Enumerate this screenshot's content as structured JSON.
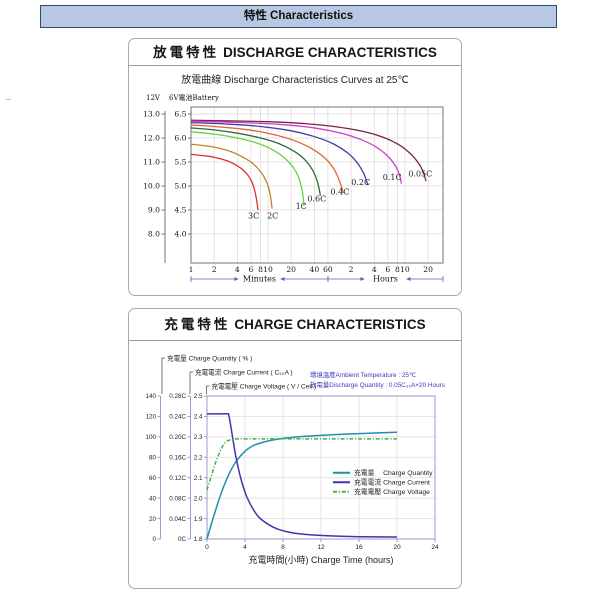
{
  "banner": {
    "title": "特性 Characteristics"
  },
  "chart_data": [
    {
      "id": "discharge",
      "type": "line",
      "title_zh": "放電特性",
      "title_en": "DISCHARGE CHARACTERISTICS",
      "subtitle": "放電曲線 Discharge Characteristics Curves at 25℃",
      "x_axis": {
        "scale": "log",
        "minute_ticks": [
          1,
          2,
          4,
          6,
          8,
          10,
          20,
          40,
          60
        ],
        "hour_ticks": [
          2,
          4,
          6,
          8,
          10,
          20
        ],
        "group_labels": [
          "Minutes",
          "Hours"
        ]
      },
      "y_axis_12v": {
        "header": "12V",
        "ticks": [
          "13.0",
          "12.0",
          "11.0",
          "10.0",
          "9.0",
          "8.0"
        ]
      },
      "y_axis_6v": {
        "header": "6V電池Battery",
        "ticks": [
          "6.5",
          "6.0",
          "5.5",
          "5.0",
          "4.5",
          "4.0"
        ],
        "range_volts": [
          4.0,
          6.5
        ]
      },
      "series": [
        {
          "name": "0.05C",
          "color": "#7d2248",
          "label_at": [
            950,
            5.2
          ],
          "points": [
            [
              1,
              6.37
            ],
            [
              10,
              6.34
            ],
            [
              30,
              6.3
            ],
            [
              80,
              6.23
            ],
            [
              180,
              6.13
            ],
            [
              320,
              6.01
            ],
            [
              500,
              5.86
            ],
            [
              700,
              5.68
            ],
            [
              880,
              5.5
            ],
            [
              1020,
              5.32
            ],
            [
              1130,
              5.1
            ]
          ]
        },
        {
          "name": "0.1C",
          "color": "#cc3fcc",
          "label_at": [
            410,
            5.13
          ],
          "points": [
            [
              1,
              6.35
            ],
            [
              5,
              6.32
            ],
            [
              15,
              6.28
            ],
            [
              40,
              6.21
            ],
            [
              90,
              6.1
            ],
            [
              160,
              5.97
            ],
            [
              250,
              5.82
            ],
            [
              350,
              5.64
            ],
            [
              440,
              5.45
            ],
            [
              505,
              5.25
            ],
            [
              540,
              5.05
            ]
          ]
        },
        {
          "name": "0.2C",
          "color": "#3d3f9e",
          "label_at": [
            160,
            5.02
          ],
          "points": [
            [
              1,
              6.32
            ],
            [
              3,
              6.29
            ],
            [
              8,
              6.24
            ],
            [
              20,
              6.15
            ],
            [
              40,
              6.03
            ],
            [
              70,
              5.88
            ],
            [
              110,
              5.68
            ],
            [
              145,
              5.48
            ],
            [
              175,
              5.26
            ],
            [
              198,
              5.02
            ]
          ]
        },
        {
          "name": "0.4C",
          "color": "#e2622f",
          "label_at": [
            86,
            4.82
          ],
          "points": [
            [
              1,
              6.27
            ],
            [
              2,
              6.24
            ],
            [
              5,
              6.18
            ],
            [
              10,
              6.1
            ],
            [
              20,
              5.97
            ],
            [
              35,
              5.8
            ],
            [
              55,
              5.58
            ],
            [
              72,
              5.35
            ],
            [
              85,
              5.1
            ],
            [
              95,
              4.85
            ]
          ]
        },
        {
          "name": "0.6C",
          "color": "#2e6b38",
          "label_at": [
            43,
            4.68
          ],
          "points": [
            [
              1,
              6.21
            ],
            [
              2,
              6.17
            ],
            [
              4,
              6.1
            ],
            [
              8,
              6.0
            ],
            [
              14,
              5.88
            ],
            [
              22,
              5.72
            ],
            [
              30,
              5.55
            ],
            [
              38,
              5.33
            ],
            [
              44,
              5.08
            ],
            [
              48,
              4.8
            ]
          ]
        },
        {
          "name": "1C",
          "color": "#5fd444",
          "label_at": [
            27,
            4.52
          ],
          "points": [
            [
              1,
              6.13
            ],
            [
              2,
              6.08
            ],
            [
              4,
              6.0
            ],
            [
              7,
              5.9
            ],
            [
              11,
              5.77
            ],
            [
              16,
              5.6
            ],
            [
              21,
              5.4
            ],
            [
              25,
              5.18
            ],
            [
              27.8,
              4.9
            ],
            [
              29.5,
              4.58
            ]
          ]
        },
        {
          "name": "2C",
          "color": "#bb8426",
          "label_at": [
            11.5,
            4.32
          ],
          "points": [
            [
              1,
              5.87
            ],
            [
              1.5,
              5.84
            ],
            [
              2,
              5.81
            ],
            [
              3,
              5.74
            ],
            [
              4,
              5.66
            ],
            [
              6,
              5.5
            ],
            [
              8,
              5.3
            ],
            [
              9.5,
              5.1
            ],
            [
              10.6,
              4.85
            ],
            [
              11.3,
              4.53
            ]
          ]
        },
        {
          "name": "3C",
          "color": "#d9342b",
          "label_at": [
            6.5,
            4.32
          ],
          "points": [
            [
              1,
              5.66
            ],
            [
              1.5,
              5.63
            ],
            [
              2,
              5.6
            ],
            [
              3,
              5.52
            ],
            [
              4,
              5.42
            ],
            [
              5,
              5.3
            ],
            [
              6,
              5.13
            ],
            [
              6.6,
              4.95
            ],
            [
              7.1,
              4.72
            ],
            [
              7.4,
              4.5
            ]
          ]
        }
      ]
    },
    {
      "id": "charge",
      "type": "line",
      "title_zh": "充電特性",
      "title_en": "CHARGE CHARACTERISTICS",
      "xlabel": "充電時間(小時)  Charge Time (hours)",
      "x_ticks": [
        0,
        4,
        8,
        12,
        16,
        20,
        24
      ],
      "x_range_hours": [
        0,
        24
      ],
      "annotations": [
        "環境溫度Ambient Temperature : 25℃",
        "放電量Discharge Quantity : 0.05C₂₀A×20 Hours"
      ],
      "axes": [
        {
          "key": "quantity",
          "label_zh": "充電量",
          "label_en": "Charge Quantity ( % )",
          "ticks": [
            "140",
            "120",
            "100",
            "80",
            "60",
            "40",
            "20",
            "0"
          ]
        },
        {
          "key": "current",
          "label_zh": "充電電流",
          "label_en": "Charge Current ( C₂₀A )",
          "ticks": [
            "0.28C",
            "0.24C",
            "0.20C",
            "0.16C",
            "0.12C",
            "0.08C",
            "0.04C",
            "0C"
          ]
        },
        {
          "key": "voltage",
          "label_zh": "充電電壓",
          "label_en": "Charge Voltage ( V / Cell )",
          "ticks": [
            "2.5",
            "2.4",
            "2.3",
            "2.2",
            "2.1",
            "2.0",
            "1.9",
            "1.8"
          ]
        }
      ],
      "legend": [
        {
          "zh": "充電量",
          "en": "Charge Quantity",
          "color": "#1f8fae",
          "dash": "solid"
        },
        {
          "zh": "充電電流",
          "en": "Charge Current",
          "color": "#4632a8",
          "dash": "solid"
        },
        {
          "zh": "充電電壓",
          "en": "Charge Voltage",
          "color": "#3cb34a",
          "dash": "dashdot"
        }
      ],
      "series": [
        {
          "name": "Charge Quantity",
          "axis": "quantity",
          "color": "#1f8fae",
          "dash": "solid",
          "points": [
            [
              0,
              0
            ],
            [
              0.5,
              16
            ],
            [
              1,
              31
            ],
            [
              1.5,
              45
            ],
            [
              2,
              57
            ],
            [
              2.5,
              67
            ],
            [
              3,
              75
            ],
            [
              3.5,
              81
            ],
            [
              4,
              86
            ],
            [
              4.5,
              89.5
            ],
            [
              5,
              92
            ],
            [
              6,
              95
            ],
            [
              7,
              97
            ],
            [
              8,
              98.5
            ],
            [
              9,
              99.5
            ],
            [
              10,
              100.3
            ],
            [
              12,
              101.5
            ],
            [
              14,
              102.4
            ],
            [
              16,
              103.2
            ],
            [
              18,
              103.9
            ],
            [
              20,
              104.5
            ]
          ]
        },
        {
          "name": "Charge Current",
          "axis": "current",
          "color": "#4632a8",
          "dash": "solid",
          "points": [
            [
              0,
              0.245
            ],
            [
              1,
              0.245
            ],
            [
              2.1,
              0.245
            ],
            [
              2.3,
              0.242
            ],
            [
              2.6,
              0.21
            ],
            [
              3,
              0.165
            ],
            [
              3.4,
              0.13
            ],
            [
              3.8,
              0.103
            ],
            [
              4.2,
              0.082
            ],
            [
              4.8,
              0.06
            ],
            [
              5.5,
              0.042
            ],
            [
              6.5,
              0.028
            ],
            [
              7.5,
              0.019
            ],
            [
              9,
              0.012
            ],
            [
              11,
              0.008
            ],
            [
              13,
              0.006
            ],
            [
              16,
              0.0045
            ],
            [
              20,
              0.004
            ]
          ]
        },
        {
          "name": "Charge Voltage",
          "axis": "voltage",
          "color": "#3cb34a",
          "dash": "dashdot",
          "points": [
            [
              0,
              2.04
            ],
            [
              0.4,
              2.1
            ],
            [
              0.8,
              2.16
            ],
            [
              1.2,
              2.21
            ],
            [
              1.6,
              2.25
            ],
            [
              2.0,
              2.275
            ],
            [
              2.4,
              2.285
            ],
            [
              3,
              2.29
            ],
            [
              6,
              2.29
            ],
            [
              10,
              2.29
            ],
            [
              15,
              2.29
            ],
            [
              20,
              2.29
            ]
          ]
        }
      ]
    }
  ]
}
